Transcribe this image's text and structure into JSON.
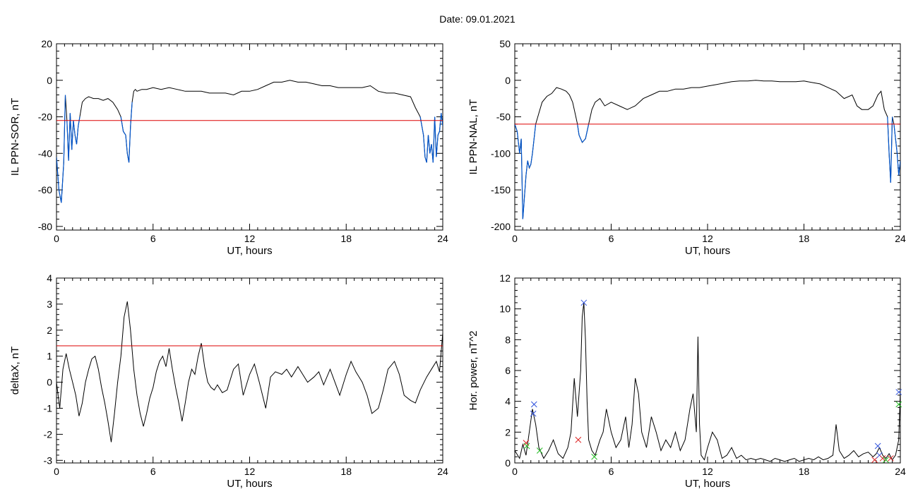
{
  "figure": {
    "date_label": "Date:  09.01.2021"
  },
  "chart_data": [
    {
      "type": "line",
      "ylabel": "IL PPN-SOR, nT",
      "xlabel": "UT, hours",
      "xlim": [
        0,
        24
      ],
      "ylim": [
        -82,
        20
      ],
      "xticks": [
        0,
        6,
        12,
        18,
        24
      ],
      "yticks": [
        -80,
        -60,
        -40,
        -20,
        0,
        20
      ],
      "threshold": -22,
      "colors": {
        "line": "#000000",
        "highlight": "#0055cc",
        "threshold": "#dd0000"
      },
      "series": [
        {
          "x": [
            0,
            0.15,
            0.3,
            0.45,
            0.55,
            0.65,
            0.75,
            0.85,
            0.95,
            1.05,
            1.15,
            1.25,
            1.35,
            1.45,
            1.6,
            1.8,
            2.0,
            2.3,
            2.6,
            2.9,
            3.2,
            3.5,
            3.8,
            4.0,
            4.15,
            4.3,
            4.4,
            4.5,
            4.6,
            4.7,
            4.8,
            4.9,
            5.0,
            5.3,
            5.6,
            6.0,
            6.5,
            7.0,
            7.5,
            8.0,
            8.5,
            9.0,
            9.5,
            10.0,
            10.5,
            11.0,
            11.5,
            12.0,
            12.5,
            13.0,
            13.5,
            14.0,
            14.5,
            15.0,
            15.5,
            16.0,
            16.5,
            17.0,
            17.5,
            18.0,
            18.5,
            19.0,
            19.5,
            20.0,
            20.5,
            21.0,
            21.5,
            22.0,
            22.3,
            22.6,
            22.8,
            22.9,
            23.0,
            23.1,
            23.2,
            23.3,
            23.4,
            23.5,
            23.6,
            23.7,
            23.8,
            23.9,
            24.0
          ],
          "y": [
            -42,
            -60,
            -67,
            -45,
            -8,
            -22,
            -44,
            -18,
            -38,
            -22,
            -30,
            -35,
            -25,
            -20,
            -12,
            -10,
            -9,
            -10,
            -10,
            -11,
            -10,
            -12,
            -16,
            -20,
            -28,
            -30,
            -40,
            -45,
            -25,
            -12,
            -6,
            -5,
            -6,
            -5,
            -5,
            -4,
            -5,
            -4,
            -5,
            -6,
            -6,
            -6,
            -7,
            -7,
            -7,
            -8,
            -6,
            -6,
            -5,
            -3,
            -1,
            -1,
            0,
            -1,
            -1,
            -2,
            -3,
            -3,
            -4,
            -4,
            -4,
            -4,
            -3,
            -6,
            -7,
            -7,
            -8,
            -9,
            -15,
            -20,
            -30,
            -42,
            -45,
            -30,
            -40,
            -35,
            -45,
            -20,
            -42,
            -30,
            -28,
            -18,
            -25
          ]
        }
      ]
    },
    {
      "type": "line",
      "ylabel": "IL PPN-NAL, nT",
      "xlabel": "UT, hours",
      "xlim": [
        0,
        24
      ],
      "ylim": [
        -205,
        50
      ],
      "xticks": [
        0,
        6,
        12,
        18,
        24
      ],
      "yticks": [
        -200,
        -150,
        -100,
        -50,
        0,
        50
      ],
      "threshold": -60,
      "colors": {
        "line": "#000000",
        "highlight": "#0055cc",
        "threshold": "#dd0000"
      },
      "series": [
        {
          "x": [
            0,
            0.15,
            0.3,
            0.4,
            0.5,
            0.6,
            0.7,
            0.8,
            0.9,
            1.0,
            1.1,
            1.3,
            1.5,
            1.7,
            2.0,
            2.3,
            2.6,
            2.9,
            3.2,
            3.4,
            3.6,
            3.8,
            3.9,
            4.0,
            4.2,
            4.4,
            4.6,
            4.8,
            5.0,
            5.3,
            5.6,
            6.0,
            6.5,
            7.0,
            7.5,
            8.0,
            8.5,
            9.0,
            9.5,
            10.0,
            10.5,
            11.0,
            11.5,
            12.0,
            12.5,
            13.0,
            13.5,
            14.0,
            14.5,
            15.0,
            15.5,
            16.0,
            16.5,
            17.0,
            17.5,
            18.0,
            18.5,
            19.0,
            19.5,
            20.0,
            20.5,
            21.0,
            21.3,
            21.6,
            22.0,
            22.3,
            22.6,
            22.8,
            23.0,
            23.2,
            23.3,
            23.4,
            23.5,
            23.6,
            23.7,
            23.8,
            23.9,
            24.0
          ],
          "y": [
            -60,
            -70,
            -100,
            -80,
            -190,
            -160,
            -130,
            -110,
            -120,
            -115,
            -100,
            -60,
            -45,
            -30,
            -22,
            -18,
            -10,
            -12,
            -15,
            -20,
            -30,
            -50,
            -60,
            -75,
            -85,
            -80,
            -60,
            -40,
            -30,
            -25,
            -35,
            -30,
            -35,
            -40,
            -35,
            -25,
            -20,
            -15,
            -15,
            -12,
            -12,
            -10,
            -10,
            -8,
            -6,
            -4,
            -2,
            -1,
            -1,
            0,
            -1,
            -1,
            -2,
            -2,
            -2,
            -1,
            -3,
            -5,
            -10,
            -15,
            -25,
            -20,
            -35,
            -40,
            -40,
            -35,
            -20,
            -15,
            -40,
            -50,
            -100,
            -140,
            -50,
            -60,
            -80,
            -100,
            -130,
            -110
          ]
        }
      ]
    },
    {
      "type": "line",
      "ylabel": "deltaX, nT",
      "xlabel": "UT, hours",
      "xlim": [
        0,
        24
      ],
      "ylim": [
        -3.1,
        4
      ],
      "xticks": [
        0,
        6,
        12,
        18,
        24
      ],
      "yticks": [
        -3,
        -2,
        -1,
        0,
        1,
        2,
        3,
        4
      ],
      "threshold": 1.4,
      "colors": {
        "line": "#000000",
        "threshold": "#dd0000"
      },
      "series": [
        {
          "x": [
            0,
            0.2,
            0.4,
            0.6,
            0.8,
            1.0,
            1.2,
            1.4,
            1.6,
            1.8,
            2.0,
            2.2,
            2.4,
            2.6,
            2.8,
            3.0,
            3.2,
            3.4,
            3.6,
            3.8,
            4.0,
            4.2,
            4.4,
            4.6,
            4.8,
            5.0,
            5.2,
            5.4,
            5.6,
            5.8,
            6.0,
            6.2,
            6.4,
            6.6,
            6.8,
            7.0,
            7.2,
            7.4,
            7.6,
            7.8,
            8.0,
            8.2,
            8.4,
            8.6,
            8.8,
            9.0,
            9.2,
            9.4,
            9.6,
            9.8,
            10.0,
            10.3,
            10.6,
            11.0,
            11.3,
            11.6,
            12.0,
            12.3,
            12.6,
            13.0,
            13.3,
            13.6,
            14.0,
            14.3,
            14.6,
            15.0,
            15.3,
            15.6,
            16.0,
            16.3,
            16.6,
            17.0,
            17.3,
            17.6,
            18.0,
            18.3,
            18.6,
            19.0,
            19.3,
            19.6,
            20.0,
            20.3,
            20.6,
            21.0,
            21.3,
            21.6,
            22.0,
            22.3,
            22.6,
            23.0,
            23.3,
            23.6,
            23.8,
            24.0
          ],
          "y": [
            0,
            -1,
            0.5,
            1.1,
            0.5,
            0,
            -0.5,
            -1.3,
            -0.8,
            0,
            0.5,
            0.9,
            1.0,
            0.5,
            -0.2,
            -0.8,
            -1.5,
            -2.3,
            -1.2,
            0,
            1.0,
            2.5,
            3.1,
            2.0,
            0.5,
            -0.5,
            -1.2,
            -1.7,
            -1.2,
            -0.6,
            -0.2,
            0.4,
            0.8,
            1.0,
            0.6,
            1.3,
            0.5,
            -0.2,
            -0.8,
            -1.5,
            -0.8,
            0,
            0.5,
            0.3,
            1.0,
            1.5,
            0.6,
            0,
            -0.2,
            -0.3,
            -0.1,
            -0.4,
            -0.3,
            0.5,
            0.7,
            -0.5,
            0.3,
            0.7,
            0,
            -1.0,
            0.2,
            0.4,
            0.3,
            0.5,
            0.2,
            0.6,
            0.3,
            0,
            0.2,
            0.4,
            -0.1,
            0.5,
            0,
            -0.5,
            0.3,
            0.8,
            0.4,
            0,
            -0.5,
            -1.2,
            -1.0,
            -0.3,
            0.5,
            0.8,
            0.3,
            -0.5,
            -0.7,
            -0.8,
            -0.3,
            0.2,
            0.5,
            0.8,
            0.4,
            1.9
          ]
        }
      ]
    },
    {
      "type": "line",
      "ylabel": "Hor. power, nT^2",
      "xlabel": "UT, hours",
      "xlim": [
        0,
        24
      ],
      "ylim": [
        0,
        12
      ],
      "xticks": [
        0,
        6,
        12,
        18,
        24
      ],
      "yticks": [
        0,
        2,
        4,
        6,
        8,
        10,
        12
      ],
      "colors": {
        "line": "#000000",
        "marker_blue": "#3355dd",
        "marker_red": "#dd2222",
        "marker_green": "#22bb22"
      },
      "series": [
        {
          "x": [
            0,
            0.3,
            0.5,
            0.7,
            0.9,
            1.1,
            1.3,
            1.5,
            1.8,
            2.1,
            2.4,
            2.7,
            3.0,
            3.3,
            3.5,
            3.7,
            3.9,
            4.1,
            4.2,
            4.3,
            4.4,
            4.5,
            4.6,
            4.8,
            5.0,
            5.3,
            5.5,
            5.7,
            6.0,
            6.3,
            6.6,
            6.9,
            7.1,
            7.3,
            7.5,
            7.7,
            7.9,
            8.2,
            8.5,
            8.8,
            9.1,
            9.4,
            9.7,
            10.0,
            10.3,
            10.6,
            10.9,
            11.1,
            11.3,
            11.4,
            11.5,
            11.6,
            11.8,
            12.0,
            12.3,
            12.6,
            12.9,
            13.2,
            13.5,
            13.8,
            14.1,
            14.4,
            14.7,
            15.0,
            15.3,
            15.6,
            15.9,
            16.2,
            16.5,
            16.8,
            17.1,
            17.4,
            17.7,
            18.0,
            18.3,
            18.6,
            18.9,
            19.2,
            19.5,
            19.8,
            20.0,
            20.2,
            20.5,
            20.8,
            21.1,
            21.4,
            21.7,
            22.0,
            22.3,
            22.5,
            22.7,
            22.9,
            23.1,
            23.3,
            23.5,
            23.7,
            23.9,
            24.0
          ],
          "y": [
            0.8,
            0.3,
            1.2,
            0.5,
            2.0,
            3.5,
            2.5,
            1.0,
            0.3,
            0.8,
            1.5,
            0.6,
            0.3,
            1.0,
            2.0,
            5.5,
            3.0,
            6.0,
            9.5,
            10.4,
            8.0,
            4.0,
            1.5,
            0.8,
            0.5,
            1.5,
            2.0,
            3.5,
            2.0,
            1.0,
            1.5,
            3.0,
            1.0,
            2.5,
            5.5,
            4.5,
            2.0,
            1.0,
            3.0,
            2.0,
            0.8,
            1.5,
            1.0,
            2.0,
            0.8,
            1.5,
            3.5,
            4.5,
            2.0,
            8.2,
            2.5,
            0.5,
            0.2,
            1.0,
            2.0,
            1.5,
            0.3,
            0.5,
            1.0,
            0.3,
            0.5,
            0.2,
            0.3,
            0.2,
            0.3,
            0.2,
            0.1,
            0.3,
            0.2,
            0.1,
            0.2,
            0.3,
            0.1,
            0.2,
            0.3,
            0.2,
            0.4,
            0.2,
            0.3,
            0.5,
            2.5,
            0.8,
            0.3,
            0.5,
            0.8,
            0.4,
            0.6,
            0.7,
            0.4,
            0.6,
            1.0,
            0.5,
            0.3,
            0.6,
            0.2,
            0.5,
            1.5,
            4.7
          ]
        }
      ],
      "markers": [
        {
          "x": 0.7,
          "y": 1.3,
          "color": "red"
        },
        {
          "x": 0.75,
          "y": 1.1,
          "color": "green"
        },
        {
          "x": 1.2,
          "y": 3.8,
          "color": "blue"
        },
        {
          "x": 1.15,
          "y": 3.2,
          "color": "blue"
        },
        {
          "x": 1.55,
          "y": 0.8,
          "color": "green"
        },
        {
          "x": 3.95,
          "y": 1.5,
          "color": "red"
        },
        {
          "x": 4.3,
          "y": 10.4,
          "color": "blue"
        },
        {
          "x": 4.95,
          "y": 0.4,
          "color": "green"
        },
        {
          "x": 22.4,
          "y": 0.2,
          "color": "red"
        },
        {
          "x": 22.6,
          "y": 1.1,
          "color": "blue"
        },
        {
          "x": 22.7,
          "y": 0.5,
          "color": "blue"
        },
        {
          "x": 22.9,
          "y": 0.3,
          "color": "red"
        },
        {
          "x": 23.1,
          "y": 0.2,
          "color": "green"
        },
        {
          "x": 23.4,
          "y": 0.3,
          "color": "red"
        },
        {
          "x": 23.9,
          "y": 4.6,
          "color": "blue"
        },
        {
          "x": 23.9,
          "y": 3.8,
          "color": "green"
        }
      ]
    }
  ]
}
